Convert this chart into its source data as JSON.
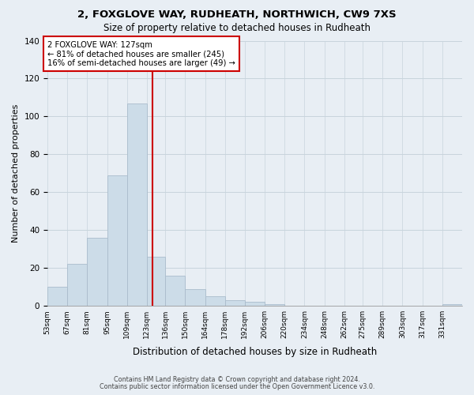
{
  "title1": "2, FOXGLOVE WAY, RUDHEATH, NORTHWICH, CW9 7XS",
  "title2": "Size of property relative to detached houses in Rudheath",
  "xlabel": "Distribution of detached houses by size in Rudheath",
  "ylabel": "Number of detached properties",
  "bar_color": "#ccdce8",
  "bar_edge_color": "#aabccc",
  "vline_x": 127,
  "vline_color": "#cc0000",
  "categories": [
    "53sqm",
    "67sqm",
    "81sqm",
    "95sqm",
    "109sqm",
    "123sqm",
    "136sqm",
    "150sqm",
    "164sqm",
    "178sqm",
    "192sqm",
    "206sqm",
    "220sqm",
    "234sqm",
    "248sqm",
    "262sqm",
    "275sqm",
    "289sqm",
    "303sqm",
    "317sqm",
    "331sqm"
  ],
  "bin_edges": [
    53,
    67,
    81,
    95,
    109,
    123,
    136,
    150,
    164,
    178,
    192,
    206,
    220,
    234,
    248,
    262,
    275,
    289,
    303,
    317,
    331
  ],
  "values": [
    10,
    22,
    36,
    69,
    107,
    26,
    16,
    9,
    5,
    3,
    2,
    1,
    0,
    0,
    0,
    0,
    0,
    0,
    0,
    0,
    1
  ],
  "ylim": [
    0,
    140
  ],
  "yticks": [
    0,
    20,
    40,
    60,
    80,
    100,
    120,
    140
  ],
  "annotation_title": "2 FOXGLOVE WAY: 127sqm",
  "annotation_line1": "← 81% of detached houses are smaller (245)",
  "annotation_line2": "16% of semi-detached houses are larger (49) →",
  "annotation_box_color": "#ffffff",
  "annotation_box_edge": "#cc0000",
  "footer1": "Contains HM Land Registry data © Crown copyright and database right 2024.",
  "footer2": "Contains public sector information licensed under the Open Government Licence v3.0.",
  "background_color": "#e8eef4",
  "plot_background": "#e8eef4",
  "grid_color": "#c8d4dc"
}
